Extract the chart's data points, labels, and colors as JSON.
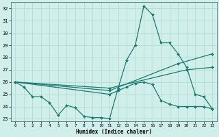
{
  "title": "",
  "xlabel": "Humidex (Indice chaleur)",
  "ylabel": "",
  "background_color": "#d0eeea",
  "grid_color": "#b0d8d0",
  "line_color": "#1a7a6e",
  "xlim": [
    -0.5,
    23.5
  ],
  "ylim": [
    22.8,
    32.5
  ],
  "yticks": [
    23,
    24,
    25,
    26,
    27,
    28,
    29,
    30,
    31,
    32
  ],
  "xticks": [
    0,
    1,
    2,
    3,
    4,
    5,
    6,
    7,
    8,
    9,
    10,
    11,
    12,
    13,
    14,
    15,
    16,
    17,
    18,
    19,
    20,
    21,
    22,
    23
  ],
  "lines": [
    {
      "x": [
        0,
        1,
        2,
        3,
        4,
        5,
        6,
        7,
        8,
        9,
        10,
        11,
        12,
        13,
        14,
        15,
        16,
        17,
        18,
        19,
        20,
        21,
        22,
        23
      ],
      "y": [
        26.0,
        25.6,
        24.8,
        24.8,
        24.3,
        23.3,
        24.1,
        23.9,
        23.2,
        23.1,
        23.1,
        23.0,
        25.5,
        27.8,
        29.0,
        32.2,
        31.5,
        29.2,
        29.2,
        28.3,
        27.2,
        25.0,
        24.8,
        23.8
      ]
    },
    {
      "x": [
        0,
        11,
        12,
        13,
        14,
        15,
        16,
        17,
        18,
        19,
        20,
        21,
        22,
        23
      ],
      "y": [
        26.0,
        25.0,
        25.3,
        25.6,
        25.9,
        26.0,
        25.8,
        24.5,
        24.2,
        24.0,
        24.0,
        24.0,
        24.0,
        23.8
      ]
    },
    {
      "x": [
        0,
        11,
        19,
        23
      ],
      "y": [
        26.0,
        25.3,
        27.5,
        28.3
      ]
    },
    {
      "x": [
        0,
        11,
        20,
        23
      ],
      "y": [
        26.0,
        25.5,
        27.0,
        27.2
      ]
    }
  ]
}
